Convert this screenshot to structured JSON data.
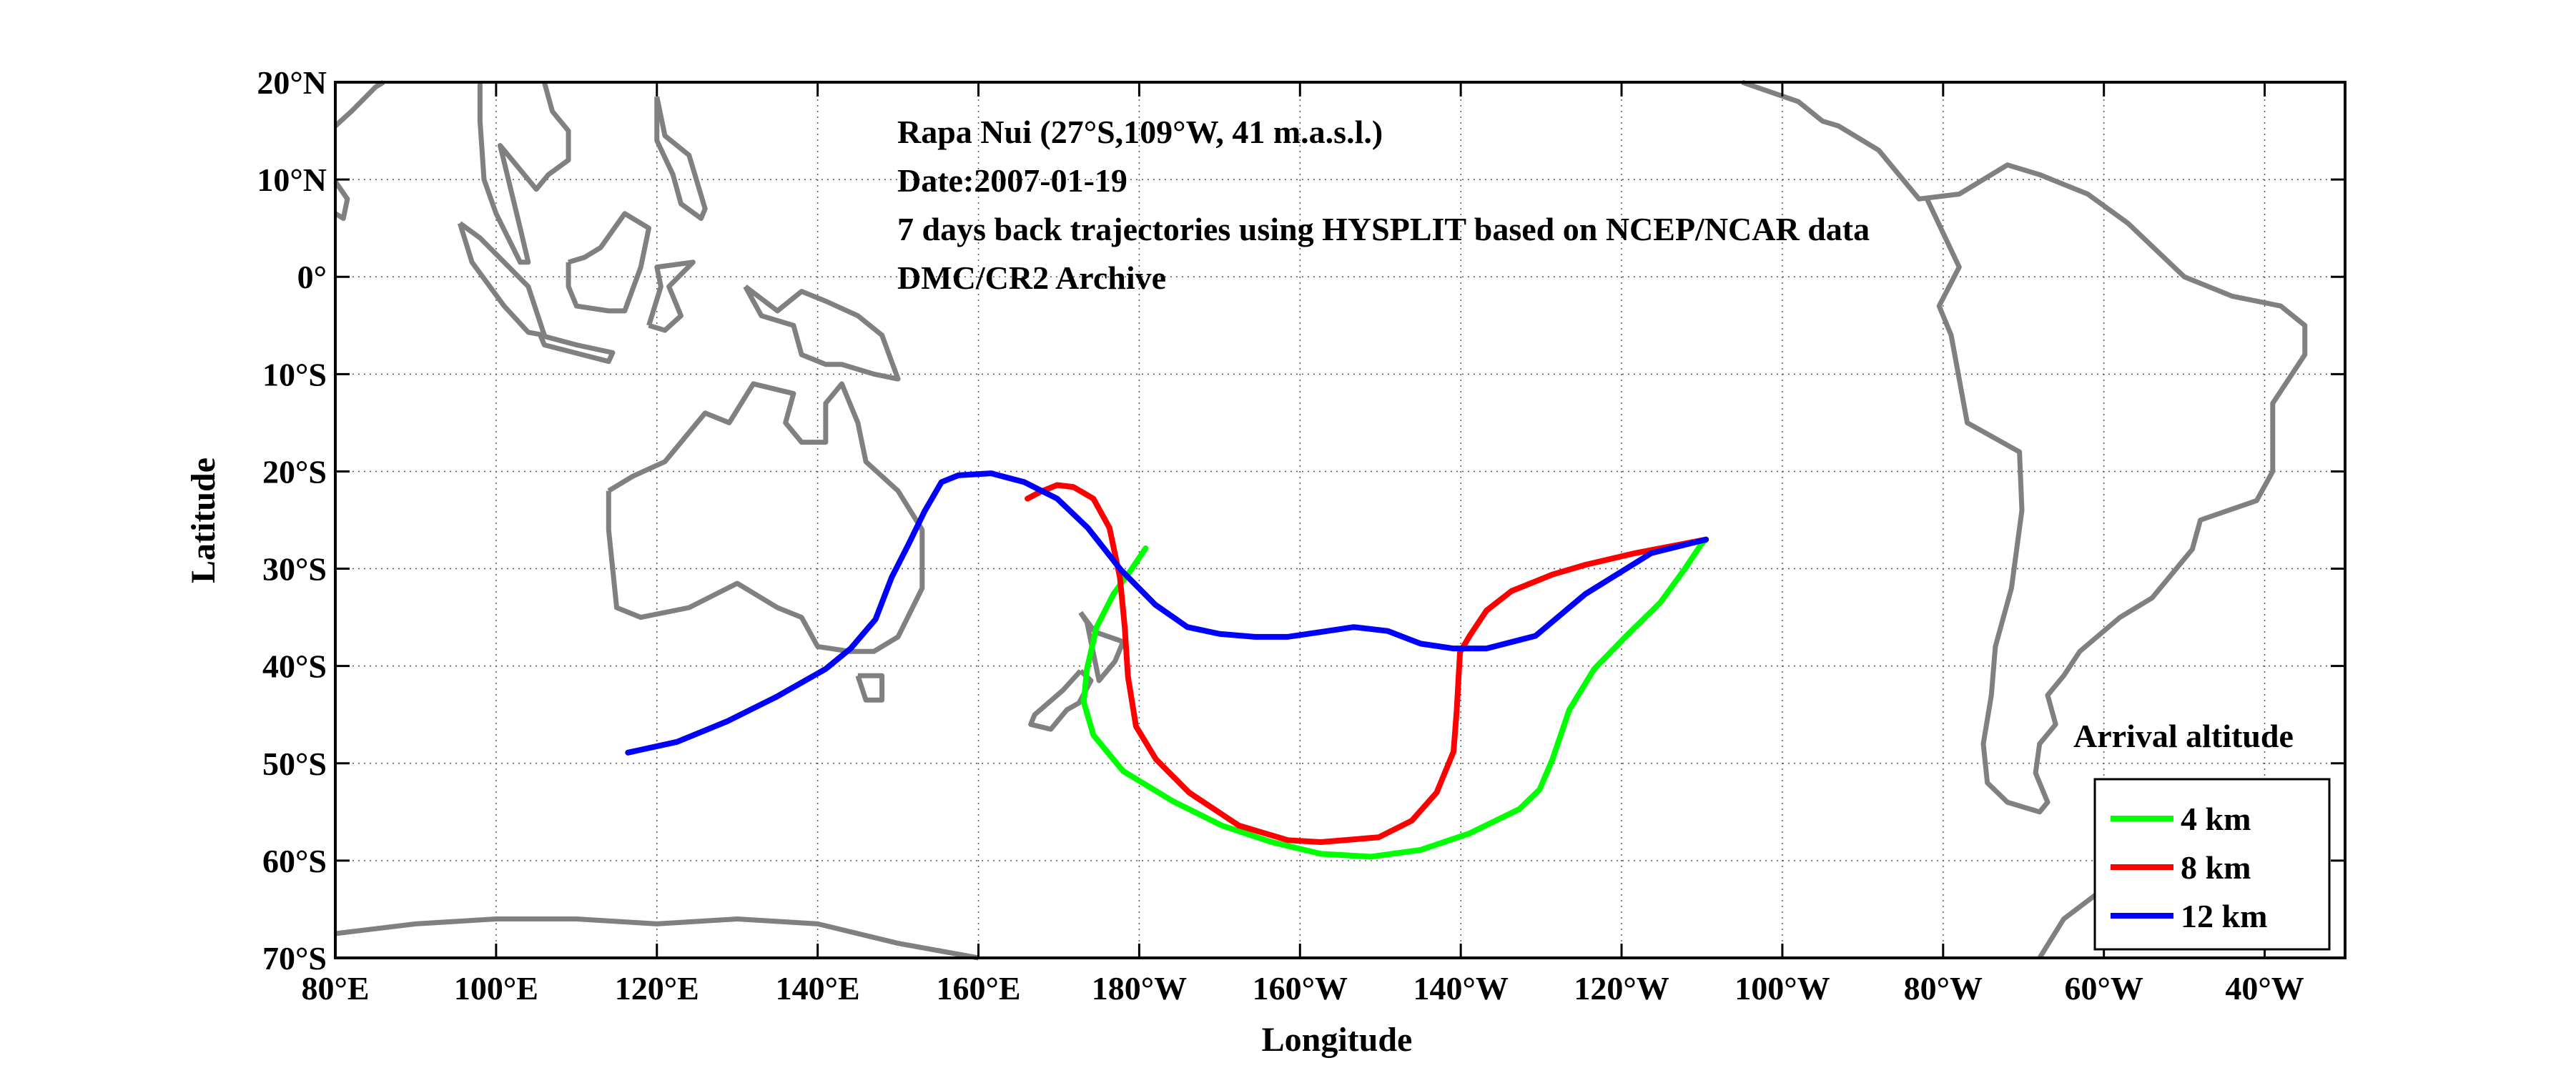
{
  "chart_data": {
    "type": "line",
    "xlabel": "Longitude",
    "ylabel": "Latitude",
    "xlim": [
      80,
      330
    ],
    "ylim": [
      -70,
      20
    ],
    "grid": true,
    "x_ticks": [
      80,
      100,
      120,
      140,
      160,
      180,
      200,
      220,
      240,
      260,
      280,
      300,
      320
    ],
    "x_tick_labels": [
      "80°E",
      "100°E",
      "120°E",
      "140°E",
      "160°E",
      "180°W",
      "160°W",
      "140°W",
      "120°W",
      "100°W",
      "80°W",
      "60°W",
      "40°W"
    ],
    "y_ticks": [
      20,
      10,
      0,
      -10,
      -20,
      -30,
      -40,
      -50,
      -60,
      -70
    ],
    "y_tick_labels": [
      "20°N",
      "10°N",
      "0°",
      "10°S",
      "20°S",
      "30°S",
      "40°S",
      "50°S",
      "60°S",
      "70°S"
    ],
    "annotations": [
      "Rapa Nui (27°S,109°W, 41 m.a.s.l.)",
      "Date:2007-01-19",
      "7 days back trajectories using HYSPLIT based on NCEP/NCAR data",
      "DMC/CR2 Archive"
    ],
    "legend": {
      "title": "Arrival altitude",
      "placement": "bottom-right"
    },
    "coast_color": "#808080",
    "series": [
      {
        "name": "4 km",
        "color": "#00ff00",
        "points": [
          [
            250.5,
            -27
          ],
          [
            249.9,
            -27.5
          ],
          [
            247.8,
            -30.1
          ],
          [
            244.8,
            -33.5
          ],
          [
            240.6,
            -36.9
          ],
          [
            236.6,
            -40.3
          ],
          [
            233.5,
            -44.5
          ],
          [
            231.4,
            -49.6
          ],
          [
            229.8,
            -52.7
          ],
          [
            227.3,
            -54.7
          ],
          [
            221.1,
            -57.2
          ],
          [
            215,
            -58.9
          ],
          [
            208.8,
            -59.6
          ],
          [
            202.6,
            -59.3
          ],
          [
            196.5,
            -58.1
          ],
          [
            190.3,
            -56.4
          ],
          [
            184.2,
            -53.9
          ],
          [
            178,
            -50.8
          ],
          [
            174.3,
            -47.1
          ],
          [
            173.1,
            -43.7
          ],
          [
            173.5,
            -40.3
          ],
          [
            174.7,
            -36
          ],
          [
            176.8,
            -32.6
          ],
          [
            179,
            -30.1
          ],
          [
            180.8,
            -27.9
          ]
        ]
      },
      {
        "name": "8 km",
        "color": "#ff0000",
        "points": [
          [
            250.5,
            -27
          ],
          [
            241.7,
            -28.4
          ],
          [
            235.5,
            -29.6
          ],
          [
            231.4,
            -30.6
          ],
          [
            226.3,
            -32.3
          ],
          [
            223.2,
            -34.3
          ],
          [
            221.1,
            -36.9
          ],
          [
            219.9,
            -38.6
          ],
          [
            219.5,
            -44.5
          ],
          [
            219.1,
            -48.8
          ],
          [
            217,
            -53
          ],
          [
            213.9,
            -55.9
          ],
          [
            209.8,
            -57.6
          ],
          [
            202.6,
            -58.1
          ],
          [
            198.5,
            -57.9
          ],
          [
            192.4,
            -56.4
          ],
          [
            186.2,
            -53
          ],
          [
            182.1,
            -49.6
          ],
          [
            179.6,
            -46.2
          ],
          [
            178.6,
            -41.1
          ],
          [
            178.2,
            -36
          ],
          [
            177.6,
            -30.9
          ],
          [
            176.3,
            -25.8
          ],
          [
            174.3,
            -22.8
          ],
          [
            171.8,
            -21.6
          ],
          [
            169.8,
            -21.4
          ],
          [
            167.7,
            -22.1
          ],
          [
            166.1,
            -22.8
          ]
        ]
      },
      {
        "name": "12 km",
        "color": "#0000ff",
        "points": [
          [
            250.5,
            -27
          ],
          [
            243.7,
            -28.4
          ],
          [
            235.5,
            -32.6
          ],
          [
            229.3,
            -36.9
          ],
          [
            223.2,
            -38.2
          ],
          [
            219.1,
            -38.2
          ],
          [
            215,
            -37.7
          ],
          [
            210.9,
            -36.4
          ],
          [
            206.7,
            -36
          ],
          [
            202.6,
            -36.5
          ],
          [
            198.5,
            -37
          ],
          [
            194.4,
            -37
          ],
          [
            190,
            -36.7
          ],
          [
            186,
            -36
          ],
          [
            182,
            -33.7
          ],
          [
            177.7,
            -30.1
          ],
          [
            173.6,
            -25.8
          ],
          [
            169.8,
            -22.8
          ],
          [
            165.7,
            -21.1
          ],
          [
            161.6,
            -20.2
          ],
          [
            157.5,
            -20.4
          ],
          [
            155.4,
            -21.1
          ],
          [
            153.3,
            -24.1
          ],
          [
            151.3,
            -27.5
          ],
          [
            149.2,
            -30.9
          ],
          [
            147.2,
            -35.2
          ],
          [
            144.1,
            -38.2
          ],
          [
            141,
            -40.3
          ],
          [
            134.8,
            -43.2
          ],
          [
            128.7,
            -45.7
          ],
          [
            122.5,
            -47.8
          ],
          [
            116.4,
            -48.9
          ]
        ]
      }
    ],
    "coastlines": [
      [
        [
          114,
          -22
        ],
        [
          114,
          -26
        ],
        [
          115,
          -34
        ],
        [
          118,
          -35
        ],
        [
          124,
          -34
        ],
        [
          130,
          -31.5
        ],
        [
          135,
          -34
        ],
        [
          138,
          -35
        ],
        [
          140,
          -38
        ],
        [
          144,
          -38.5
        ],
        [
          147,
          -38.5
        ],
        [
          150,
          -37
        ],
        [
          153,
          -32
        ],
        [
          153,
          -26
        ],
        [
          150,
          -22
        ],
        [
          146,
          -19
        ],
        [
          145,
          -15
        ],
        [
          143,
          -11
        ],
        [
          141,
          -13
        ],
        [
          141,
          -17
        ],
        [
          138,
          -17
        ],
        [
          136,
          -15
        ],
        [
          137,
          -12
        ],
        [
          132,
          -11
        ],
        [
          129,
          -15
        ],
        [
          126,
          -14
        ],
        [
          123,
          -17
        ],
        [
          121,
          -19
        ],
        [
          117,
          -20.5
        ],
        [
          114,
          -22
        ]
      ],
      [
        [
          145,
          -41
        ],
        [
          148,
          -41
        ],
        [
          148,
          -43.5
        ],
        [
          146,
          -43.5
        ],
        [
          145,
          -41
        ]
      ],
      [
        [
          172.7,
          -34.5
        ],
        [
          174.5,
          -36.5
        ],
        [
          178,
          -37.5
        ],
        [
          177,
          -39.5
        ],
        [
          175,
          -41.5
        ],
        [
          174.5,
          -39.5
        ],
        [
          173.5,
          -35.5
        ],
        [
          172.7,
          -34.5
        ]
      ],
      [
        [
          172.7,
          -40.5
        ],
        [
          174,
          -41.5
        ],
        [
          172.5,
          -43.8
        ],
        [
          171,
          -44.5
        ],
        [
          169,
          -46.5
        ],
        [
          166.5,
          -46
        ],
        [
          167,
          -45
        ],
        [
          170.5,
          -42.5
        ],
        [
          172.7,
          -40.5
        ]
      ],
      [
        [
          131,
          -1
        ],
        [
          135,
          -3.5
        ],
        [
          138,
          -1.5
        ],
        [
          141,
          -2.5
        ],
        [
          145,
          -4
        ],
        [
          148,
          -6
        ],
        [
          150,
          -10.5
        ],
        [
          147,
          -10
        ],
        [
          143,
          -9
        ],
        [
          141,
          -9
        ],
        [
          138,
          -8
        ],
        [
          137,
          -5
        ],
        [
          133,
          -4
        ],
        [
          131,
          -1
        ]
      ],
      [
        [
          109,
          1.5
        ],
        [
          111,
          2
        ],
        [
          113,
          3
        ],
        [
          116,
          6.5
        ],
        [
          119,
          5
        ],
        [
          118,
          1
        ],
        [
          116,
          -3.5
        ],
        [
          114,
          -3.5
        ],
        [
          110,
          -3
        ],
        [
          109,
          -1
        ],
        [
          109,
          1.5
        ]
      ],
      [
        [
          95.5,
          5.5
        ],
        [
          98,
          4
        ],
        [
          104,
          -1
        ],
        [
          106,
          -6
        ],
        [
          104,
          -5.7
        ],
        [
          101,
          -3
        ],
        [
          97,
          1.5
        ],
        [
          95.5,
          5.5
        ]
      ],
      [
        [
          105.5,
          -6
        ],
        [
          110,
          -7
        ],
        [
          114.5,
          -7.8
        ],
        [
          114,
          -8.7
        ],
        [
          106,
          -7
        ],
        [
          105.5,
          -6
        ]
      ],
      [
        [
          98,
          20
        ],
        [
          98,
          16
        ],
        [
          98.5,
          10
        ],
        [
          100,
          6.5
        ],
        [
          103,
          1.5
        ],
        [
          104,
          1.5
        ],
        [
          103,
          5
        ],
        [
          100.5,
          13.5
        ],
        [
          102,
          12
        ],
        [
          105,
          9
        ],
        [
          106.5,
          10.5
        ],
        [
          109,
          12
        ],
        [
          109,
          15
        ],
        [
          107,
          17
        ],
        [
          106,
          20
        ]
      ],
      [
        [
          120,
          18.5
        ],
        [
          121,
          14.5
        ],
        [
          124,
          12.5
        ],
        [
          126,
          7
        ],
        [
          125.5,
          6
        ],
        [
          123,
          7.5
        ],
        [
          122,
          10.5
        ],
        [
          120,
          14
        ],
        [
          120,
          18.5
        ]
      ],
      [
        [
          119,
          -5
        ],
        [
          120.5,
          -1
        ],
        [
          120,
          1
        ],
        [
          124.5,
          1.5
        ],
        [
          121.5,
          -1
        ],
        [
          123,
          -4
        ],
        [
          121,
          -5.5
        ],
        [
          119,
          -5
        ]
      ],
      [
        [
          80,
          15.5
        ],
        [
          82,
          17
        ],
        [
          85,
          19.5
        ],
        [
          86,
          20
        ]
      ],
      [
        [
          80,
          9.8
        ],
        [
          81.5,
          8
        ],
        [
          81,
          6
        ],
        [
          80,
          6.5
        ]
      ],
      [
        [
          255,
          20
        ],
        [
          262,
          18
        ],
        [
          265,
          16
        ],
        [
          267,
          15.5
        ],
        [
          272,
          13
        ],
        [
          274,
          11
        ],
        [
          277,
          8
        ],
        [
          282,
          8.5
        ],
        [
          283,
          9
        ],
        [
          288,
          11.5
        ],
        [
          292,
          10.5
        ],
        [
          298,
          8.5
        ],
        [
          303,
          5.5
        ],
        [
          310,
          0
        ],
        [
          316,
          -2
        ],
        [
          322,
          -3
        ],
        [
          325,
          -5
        ],
        [
          325,
          -8
        ],
        [
          321,
          -13
        ],
        [
          321,
          -20
        ],
        [
          319,
          -23
        ],
        [
          312,
          -25
        ],
        [
          311,
          -28
        ],
        [
          306,
          -33
        ],
        [
          302,
          -35
        ],
        [
          297,
          -38.5
        ],
        [
          295,
          -41
        ],
        [
          293,
          -43
        ],
        [
          294,
          -46
        ],
        [
          292,
          -48
        ],
        [
          291.5,
          -51
        ],
        [
          293,
          -54
        ],
        [
          292,
          -55
        ],
        [
          288,
          -54
        ],
        [
          285.5,
          -52
        ],
        [
          285,
          -48
        ],
        [
          286,
          -43
        ],
        [
          286.5,
          -38
        ],
        [
          288.5,
          -32
        ],
        [
          289.8,
          -24
        ],
        [
          289.5,
          -18
        ],
        [
          283,
          -15
        ],
        [
          281,
          -6
        ],
        [
          279.5,
          -3
        ],
        [
          282,
          1
        ],
        [
          278,
          8
        ]
      ],
      [
        [
          80,
          -67.5
        ],
        [
          90,
          -66.5
        ],
        [
          100,
          -66
        ],
        [
          110,
          -66
        ],
        [
          120,
          -66.5
        ],
        [
          130,
          -66
        ],
        [
          140,
          -66.5
        ],
        [
          150,
          -68.5
        ],
        [
          160,
          -70
        ]
      ],
      [
        [
          292,
          -70
        ],
        [
          295,
          -66
        ],
        [
          299,
          -63.5
        ]
      ]
    ]
  }
}
